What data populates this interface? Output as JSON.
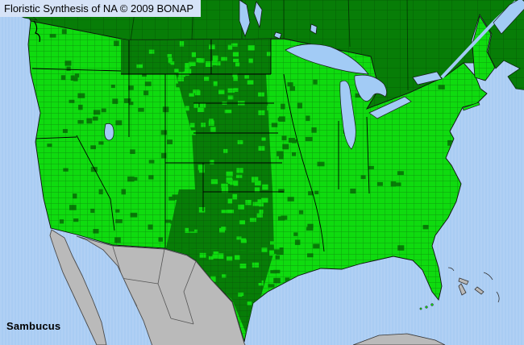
{
  "header": {
    "title": "Floristic Synthesis of NA © 2009 BONAP"
  },
  "footer": {
    "taxon": "Sambucus"
  },
  "colors": {
    "band": "#d6e3f7",
    "ocean": "#a9ccf3",
    "lake": "#a2cbf5",
    "present": "#0fdb0f",
    "absent": "#077d07",
    "foreign": "#bababa",
    "ink": "#000000"
  }
}
